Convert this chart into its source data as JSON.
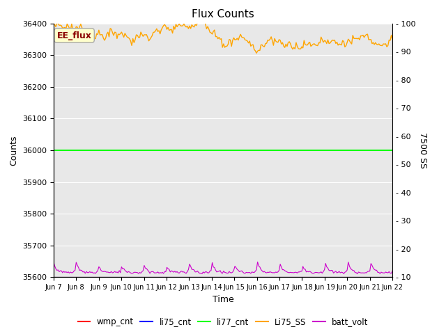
{
  "title": "Flux Counts",
  "xlabel": "Time",
  "ylabel_left": "Counts",
  "ylabel_right": "7500 SS",
  "annotation": "EE_flux",
  "x_tick_labels": [
    "Jun 7",
    "Jun 8",
    "Jun 9",
    "Jun 10",
    "Jun 11",
    "Jun 12",
    "Jun 13",
    "Jun 14",
    "Jun 15",
    "Jun 16",
    "Jun 17",
    "Jun 18",
    "Jun 19",
    "Jun 20",
    "Jun 21",
    "Jun 22"
  ],
  "ylim_left": [
    35600,
    36400
  ],
  "ylim_right": [
    10,
    100
  ],
  "yticks_left": [
    35600,
    35700,
    35800,
    35900,
    36000,
    36100,
    36200,
    36300,
    36400
  ],
  "yticks_right": [
    10,
    20,
    30,
    40,
    50,
    60,
    70,
    80,
    90,
    100
  ],
  "n_points": 300,
  "li77_cnt_value": 36000,
  "orange_base": 36370,
  "purple_base": 35615,
  "orange_line_color": "#FFA500",
  "green_line_color": "#00FF00",
  "purple_line_color": "#CC00CC",
  "red_line_color": "#FF0000",
  "blue_line_color": "#0000FF",
  "background_color": "#E8E8E8",
  "fig_bg_color": "#FFFFFF",
  "legend_entries": [
    "wmp_cnt",
    "li75_cnt",
    "li77_cnt",
    "Li75_SS",
    "batt_volt"
  ],
  "legend_colors": [
    "#FF0000",
    "#0000FF",
    "#00FF00",
    "#FFA500",
    "#CC00CC"
  ],
  "annotation_facecolor": "#FFFFCC",
  "annotation_edgecolor": "#AAAAAA",
  "annotation_textcolor": "#8B0000",
  "grid_color": "#FFFFFF"
}
